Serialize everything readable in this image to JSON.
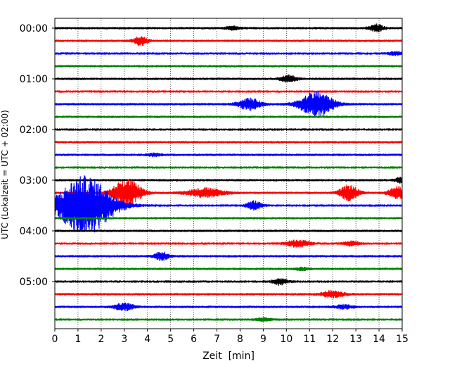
{
  "chart_data": {
    "type": "line",
    "title": "",
    "xlabel": "Zeit  [min]",
    "ylabel": "UTC (Lokalzeit = UTC + 02:00)",
    "xlim": [
      0,
      15
    ],
    "x_ticks": [
      0,
      1,
      2,
      3,
      4,
      5,
      6,
      7,
      8,
      9,
      10,
      11,
      12,
      13,
      14,
      15
    ],
    "x_tick_labels": [
      "0",
      "1",
      "2",
      "3",
      "4",
      "5",
      "6",
      "7",
      "8",
      "9",
      "10",
      "11",
      "12",
      "13",
      "14",
      "15"
    ],
    "y_tick_labels": [
      "00:00",
      "01:00",
      "02:00",
      "03:00",
      "04:00",
      "05:00"
    ],
    "trace_minutes": 15,
    "grid": "vertical dotted at each minute",
    "colors": [
      "#000000",
      "#ff0000",
      "#0000ff",
      "#008000"
    ],
    "series": [
      {
        "start": "00:00",
        "color": "#000000",
        "events": [
          {
            "t": 7.7,
            "a": 0.12,
            "w": 0.3
          },
          {
            "t": 13.9,
            "a": 0.28,
            "w": 0.3
          }
        ]
      },
      {
        "start": "00:15",
        "color": "#ff0000",
        "events": [
          {
            "t": 3.7,
            "a": 0.35,
            "w": 0.3
          }
        ]
      },
      {
        "start": "00:30",
        "color": "#0000ff",
        "events": [
          {
            "t": 14.7,
            "a": 0.12,
            "w": 0.3
          }
        ]
      },
      {
        "start": "00:45",
        "color": "#008000",
        "events": []
      },
      {
        "start": "01:00",
        "color": "#000000",
        "events": [
          {
            "t": 10.1,
            "a": 0.25,
            "w": 0.35
          }
        ]
      },
      {
        "start": "01:15",
        "color": "#ff0000",
        "events": []
      },
      {
        "start": "01:30",
        "color": "#0000ff",
        "events": [
          {
            "t": 8.4,
            "a": 0.45,
            "w": 0.5
          },
          {
            "t": 11.3,
            "a": 1.0,
            "w": 0.7
          }
        ]
      },
      {
        "start": "01:45",
        "color": "#008000",
        "events": []
      },
      {
        "start": "02:00",
        "color": "#000000",
        "events": []
      },
      {
        "start": "02:15",
        "color": "#ff0000",
        "events": []
      },
      {
        "start": "02:30",
        "color": "#0000ff",
        "events": [
          {
            "t": 4.3,
            "a": 0.1,
            "w": 0.3
          }
        ]
      },
      {
        "start": "02:45",
        "color": "#008000",
        "events": []
      },
      {
        "start": "03:00",
        "color": "#000000",
        "events": [
          {
            "t": 14.9,
            "a": 0.18,
            "w": 0.2
          }
        ]
      },
      {
        "start": "03:15",
        "color": "#ff0000",
        "events": [
          {
            "t": 3.1,
            "a": 1.1,
            "w": 0.6
          },
          {
            "t": 6.5,
            "a": 0.35,
            "w": 0.8
          },
          {
            "t": 12.7,
            "a": 0.6,
            "w": 0.4
          },
          {
            "t": 14.8,
            "a": 0.45,
            "w": 0.4
          }
        ]
      },
      {
        "start": "03:30",
        "color": "#0000ff",
        "events": [
          {
            "t": 1.3,
            "a": 2.3,
            "w": 1.2
          },
          {
            "t": 8.6,
            "a": 0.35,
            "w": 0.3
          }
        ]
      },
      {
        "start": "03:45",
        "color": "#008000",
        "events": []
      },
      {
        "start": "04:00",
        "color": "#000000",
        "events": []
      },
      {
        "start": "04:15",
        "color": "#ff0000",
        "events": [
          {
            "t": 10.5,
            "a": 0.25,
            "w": 0.5
          },
          {
            "t": 12.8,
            "a": 0.18,
            "w": 0.3
          }
        ]
      },
      {
        "start": "04:30",
        "color": "#0000ff",
        "events": [
          {
            "t": 4.6,
            "a": 0.35,
            "w": 0.3
          }
        ]
      },
      {
        "start": "04:45",
        "color": "#008000",
        "events": [
          {
            "t": 10.7,
            "a": 0.1,
            "w": 0.3
          }
        ]
      },
      {
        "start": "05:00",
        "color": "#000000",
        "events": [
          {
            "t": 9.7,
            "a": 0.25,
            "w": 0.3
          }
        ]
      },
      {
        "start": "05:15",
        "color": "#ff0000",
        "events": [
          {
            "t": 12.0,
            "a": 0.25,
            "w": 0.5
          }
        ]
      },
      {
        "start": "05:30",
        "color": "#0000ff",
        "events": [
          {
            "t": 3.0,
            "a": 0.3,
            "w": 0.4
          },
          {
            "t": 12.5,
            "a": 0.15,
            "w": 0.4
          }
        ]
      },
      {
        "start": "05:45",
        "color": "#008000",
        "events": [
          {
            "t": 9.0,
            "a": 0.12,
            "w": 0.3
          }
        ]
      }
    ]
  }
}
